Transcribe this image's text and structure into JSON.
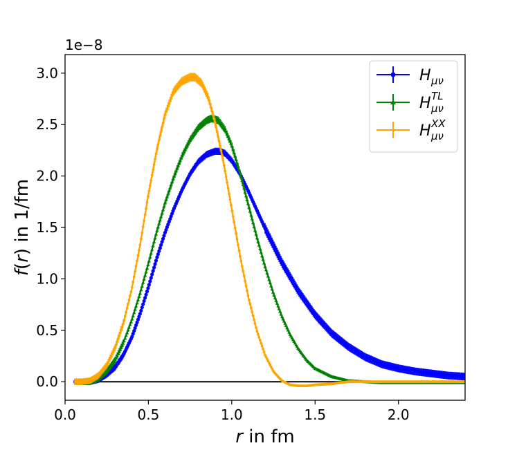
{
  "chart_data": {
    "type": "line",
    "title": "",
    "xlabel": {
      "var": "r",
      "rest": " in fm"
    },
    "ylabel": {
      "var": "f",
      "paren_var": "r",
      "rest": " in 1/fm"
    },
    "y_offset_text": "1e−8",
    "xlim": [
      0.0,
      2.4
    ],
    "ylim": [
      -0.18,
      3.18
    ],
    "x_ticks": [
      0.0,
      0.5,
      1.0,
      1.5,
      2.0
    ],
    "x_tick_labels": [
      "0.0",
      "0.5",
      "1.0",
      "1.5",
      "2.0"
    ],
    "y_ticks": [
      0.0,
      0.5,
      1.0,
      1.5,
      2.0,
      2.5,
      3.0
    ],
    "y_tick_labels": [
      "0.0",
      "0.5",
      "1.0",
      "1.5",
      "2.0",
      "2.5",
      "3.0"
    ],
    "zero_line": true,
    "grid": false,
    "legend_position": "top-right",
    "series": [
      {
        "name": "H_{μν}",
        "legend_base": "H",
        "legend_sub": "μν",
        "legend_sup": "",
        "color": "#0000ff",
        "marker": "circle",
        "x": [
          0.06,
          0.1,
          0.15,
          0.2,
          0.25,
          0.3,
          0.35,
          0.4,
          0.45,
          0.5,
          0.55,
          0.6,
          0.65,
          0.7,
          0.75,
          0.8,
          0.85,
          0.9,
          0.93,
          0.96,
          1.0,
          1.05,
          1.1,
          1.15,
          1.2,
          1.3,
          1.4,
          1.5,
          1.6,
          1.7,
          1.8,
          1.9,
          2.0,
          2.1,
          2.2,
          2.3,
          2.4
        ],
        "y": [
          0.0,
          0.0,
          0.0,
          0.02,
          0.07,
          0.14,
          0.26,
          0.43,
          0.66,
          0.92,
          1.2,
          1.45,
          1.67,
          1.86,
          2.02,
          2.14,
          2.21,
          2.24,
          2.24,
          2.22,
          2.15,
          2.02,
          1.85,
          1.67,
          1.49,
          1.16,
          0.88,
          0.65,
          0.47,
          0.34,
          0.24,
          0.17,
          0.13,
          0.1,
          0.08,
          0.06,
          0.05
        ]
      },
      {
        "name": "H_{μν}^{TL}",
        "legend_base": "H",
        "legend_sub": "μν",
        "legend_sup": "TL",
        "color": "#008000",
        "marker": "triangle",
        "x": [
          0.06,
          0.1,
          0.15,
          0.2,
          0.25,
          0.3,
          0.35,
          0.4,
          0.45,
          0.5,
          0.55,
          0.6,
          0.65,
          0.7,
          0.75,
          0.8,
          0.85,
          0.88,
          0.92,
          0.96,
          1.0,
          1.05,
          1.1,
          1.15,
          1.2,
          1.25,
          1.3,
          1.35,
          1.4,
          1.45,
          1.5,
          1.6,
          1.7,
          1.8,
          1.9,
          2.0,
          2.2,
          2.4
        ],
        "y": [
          0.0,
          0.0,
          0.0,
          0.03,
          0.1,
          0.21,
          0.38,
          0.6,
          0.86,
          1.15,
          1.46,
          1.74,
          1.98,
          2.19,
          2.35,
          2.47,
          2.54,
          2.56,
          2.54,
          2.45,
          2.3,
          2.03,
          1.72,
          1.41,
          1.12,
          0.86,
          0.64,
          0.46,
          0.32,
          0.21,
          0.13,
          0.05,
          0.01,
          0.0,
          -0.01,
          -0.01,
          -0.01,
          -0.01
        ]
      },
      {
        "name": "H_{μν}^{XX}",
        "legend_base": "H",
        "legend_sub": "μν",
        "legend_sup": "XX",
        "color": "#ffa500",
        "marker": "plus",
        "x": [
          0.06,
          0.1,
          0.15,
          0.2,
          0.25,
          0.3,
          0.35,
          0.4,
          0.45,
          0.5,
          0.55,
          0.6,
          0.65,
          0.7,
          0.75,
          0.78,
          0.82,
          0.86,
          0.9,
          0.95,
          1.0,
          1.05,
          1.1,
          1.15,
          1.2,
          1.25,
          1.3,
          1.35,
          1.4,
          1.45,
          1.5,
          1.6,
          1.7,
          1.8,
          1.9,
          2.0,
          2.2,
          2.4
        ],
        "y": [
          0.0,
          0.0,
          0.01,
          0.06,
          0.16,
          0.33,
          0.57,
          0.9,
          1.33,
          1.82,
          2.25,
          2.6,
          2.82,
          2.92,
          2.96,
          2.96,
          2.9,
          2.76,
          2.52,
          2.14,
          1.68,
          1.22,
          0.82,
          0.5,
          0.26,
          0.1,
          0.01,
          -0.03,
          -0.04,
          -0.04,
          -0.03,
          -0.02,
          0.0,
          0.0,
          0.0,
          0.0,
          0.0,
          0.0
        ]
      }
    ]
  }
}
